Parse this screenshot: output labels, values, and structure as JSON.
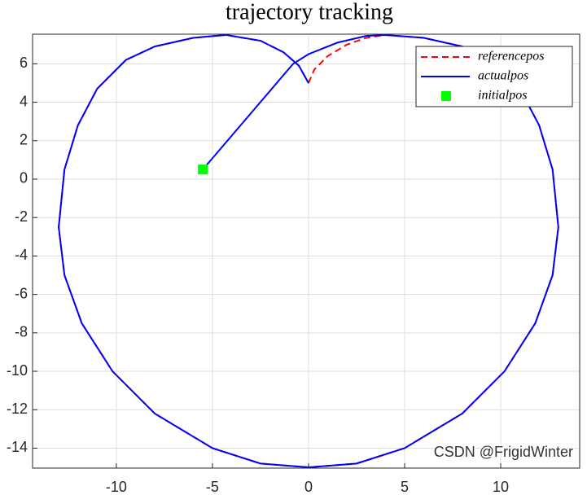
{
  "chart_data": {
    "type": "line",
    "title": "trajectory tracking",
    "xlim": [
      -14.36,
      14.11
    ],
    "ylim": [
      -15.04,
      7.54
    ],
    "xticks": [
      -10,
      -5,
      0,
      5,
      10
    ],
    "yticks": [
      -14,
      -12,
      -10,
      -8,
      -6,
      -4,
      -2,
      0,
      2,
      4,
      6
    ],
    "grid": true,
    "legend_position": "northeast",
    "series": [
      {
        "name": "referencepos",
        "color": "#ff0000",
        "line_style": "dashed",
        "x": [
          0,
          0.3,
          1,
          2,
          3,
          4,
          6,
          8,
          9.5,
          11,
          12,
          12.7,
          13,
          12.7,
          11.8,
          10.2,
          8,
          5,
          2.5,
          0,
          -2.5,
          -5,
          -8,
          -10.2,
          -11.8,
          -12.7,
          -13,
          -12.7,
          -12,
          -11,
          -9.5,
          -8,
          -6,
          -4.3,
          -2.5,
          -1.3,
          -0.5,
          0
        ],
        "values": [
          5,
          5.7,
          6.4,
          7,
          7.35,
          7.5,
          7.35,
          6.9,
          6.2,
          4.7,
          2.8,
          0.5,
          -2.5,
          -5,
          -7.5,
          -10,
          -12.2,
          -14,
          -14.8,
          -15,
          -14.8,
          -14,
          -12.2,
          -10,
          -7.5,
          -5,
          -2.5,
          0.5,
          2.8,
          4.7,
          6.2,
          6.9,
          7.35,
          7.5,
          7.2,
          6.6,
          5.9,
          5
        ]
      },
      {
        "name": "actualpos",
        "color": "#0000ff",
        "line_style": "solid",
        "x": [
          -5.5,
          -0.8,
          0,
          1.5,
          3,
          4,
          6,
          8,
          9.5,
          11,
          12,
          12.7,
          13,
          12.7,
          11.8,
          10.2,
          8,
          5,
          2.5,
          0,
          -2.5,
          -5,
          -8,
          -10.2,
          -11.8,
          -12.7,
          -13,
          -12.7,
          -12,
          -11,
          -9.5,
          -8,
          -6,
          -4.3,
          -2.5,
          -1.3,
          -0.5,
          0
        ],
        "values": [
          0.5,
          6.0,
          6.5,
          7.1,
          7.45,
          7.5,
          7.35,
          6.9,
          6.2,
          4.7,
          2.8,
          0.5,
          -2.5,
          -5,
          -7.5,
          -10,
          -12.2,
          -14,
          -14.8,
          -15,
          -14.8,
          -14,
          -12.2,
          -10,
          -7.5,
          -5,
          -2.5,
          0.5,
          2.8,
          4.7,
          6.2,
          6.9,
          7.35,
          7.5,
          7.2,
          6.6,
          5.9,
          5
        ]
      },
      {
        "name": "initialpos",
        "color": "#00ff00",
        "line_style": "none",
        "marker": "square",
        "x": [
          -5.5
        ],
        "values": [
          0.5
        ]
      }
    ],
    "watermark": "CSDN @FrigidWinter"
  }
}
